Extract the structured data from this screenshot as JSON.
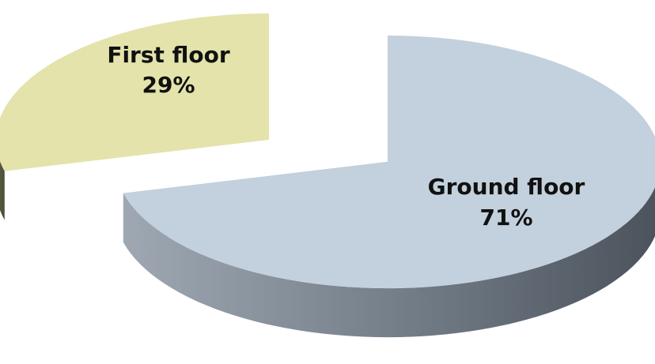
{
  "chart_data": {
    "type": "pie",
    "style": "3d-exploded",
    "title": "",
    "legend": "none",
    "slices": [
      {
        "label": "Ground floor",
        "value": 71,
        "display": "71%",
        "color": "#C3D0DD"
      },
      {
        "label": "First floor",
        "value": 29,
        "display": "29%",
        "color": "#E3E3AB"
      }
    ]
  }
}
